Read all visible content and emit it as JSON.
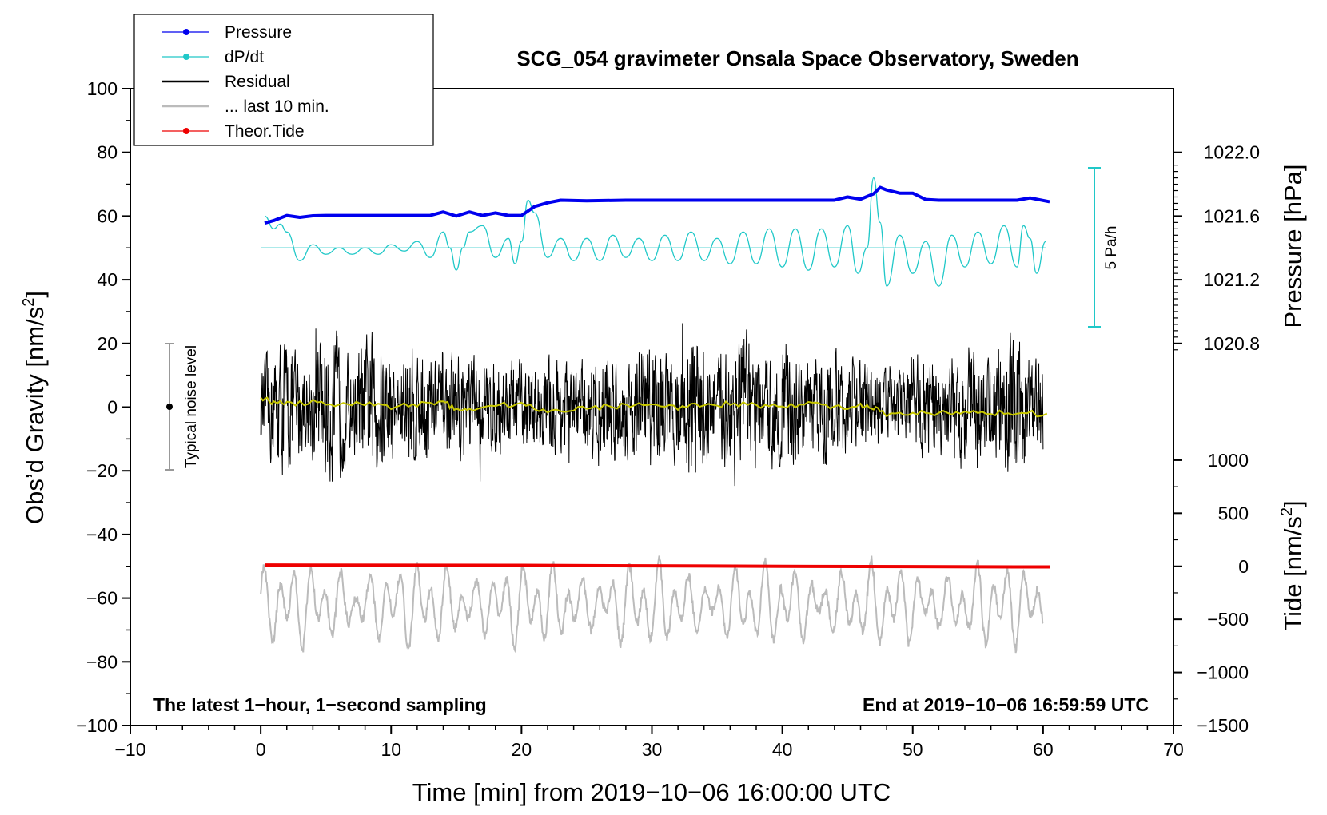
{
  "chart_data": {
    "type": "line",
    "title": "SCG_054 gravimeter Onsala Space Observatory, Sweden",
    "xlabel": "Time [min] from 2019−10−06 16:00:00 UTC",
    "ylabel_left": "Obs’d Gravity [nm/s",
    "ylabel_left_sup": "2",
    "ylabel_left_end": "]",
    "ylabel_right_pressure": "Pressure [hPa]",
    "ylabel_right_tide": "Tide [nm/s",
    "ylabel_right_tide_sup": "2",
    "ylabel_right_tide_end": "]",
    "xlim": [
      -10,
      70
    ],
    "ylim": [
      -100,
      100
    ],
    "x_ticks": [
      "−10",
      "0",
      "10",
      "20",
      "30",
      "40",
      "50",
      "60",
      "70"
    ],
    "y_ticks": [
      "−100",
      "−80",
      "−60",
      "−40",
      "−20",
      "0",
      "20",
      "40",
      "60",
      "80",
      "100"
    ],
    "pressure_ticks": [
      "1020.8",
      "1021.2",
      "1021.6",
      "1022.0"
    ],
    "tide_ticks": [
      "−1500",
      "−1000",
      "−500",
      "0",
      "500",
      "1000"
    ],
    "note_left": "The latest 1−hour, 1−second sampling",
    "note_right": "End at 2019−10−06 16:59:59 UTC",
    "noise_label": "Typical noise level",
    "noise_range": [
      -20,
      20
    ],
    "rate_label": "5 Pa/h",
    "legend": [
      {
        "label": "Pressure",
        "color": "#0000ee",
        "marker": true
      },
      {
        "label": "dP/dt",
        "color": "#20c8c8",
        "marker": true
      },
      {
        "label": "Residual",
        "color": "#000000",
        "marker": false
      },
      {
        "label": "... last 10 min.",
        "color": "#bbbbbb",
        "marker": false
      },
      {
        "label": "Theor.Tide",
        "color": "#ee0000",
        "marker": true
      }
    ],
    "series": [
      {
        "name": "Pressure",
        "color": "#0000ee",
        "axis": "left-equivalent",
        "x": [
          0.3,
          1,
          2,
          3,
          4,
          5,
          6,
          8,
          10,
          12,
          13,
          14,
          15,
          16,
          17,
          18,
          19,
          20,
          21,
          22,
          23,
          25,
          28,
          30,
          32,
          35,
          38,
          40,
          42,
          44,
          45,
          46,
          47,
          47.5,
          48,
          49,
          50,
          51,
          52,
          54,
          56,
          58,
          59,
          60.5
        ],
        "values": [
          57.8,
          58.6,
          60.2,
          59.6,
          60.1,
          60.2,
          60.2,
          60.2,
          60.2,
          60.2,
          60.2,
          61.3,
          60.0,
          61.3,
          60.2,
          61.0,
          60.2,
          60.2,
          63.0,
          64.2,
          65.0,
          64.8,
          65.0,
          65.0,
          65.0,
          65.0,
          65.0,
          65.0,
          65.0,
          65.0,
          66.0,
          65.3,
          67.0,
          69.0,
          68.2,
          67.2,
          67.2,
          65.2,
          65.0,
          65.0,
          65.0,
          65.0,
          65.7,
          64.5
        ]
      },
      {
        "name": "dP/dt",
        "color": "#20c8c8",
        "baseline": 50,
        "x": [
          0.3,
          1,
          1.5,
          2,
          3,
          4,
          5,
          6,
          7,
          8,
          9,
          10,
          11,
          12,
          13,
          14,
          14.5,
          15,
          15.5,
          16,
          17,
          18,
          19,
          19.5,
          20,
          20.5,
          21,
          22,
          23,
          24,
          25,
          26,
          27,
          28,
          29,
          30,
          31,
          32,
          33,
          34,
          35,
          36,
          37,
          38,
          39,
          40,
          41,
          42,
          43,
          44,
          45,
          45.8,
          46.5,
          47,
          47.5,
          48,
          49,
          50,
          51,
          52,
          53,
          54,
          55,
          56,
          57,
          58,
          58.5,
          59,
          59.5,
          60.2
        ],
        "values": [
          60,
          56,
          57.5,
          55,
          46,
          51,
          48,
          50,
          48,
          50,
          48,
          51,
          49,
          52,
          47,
          55,
          50,
          43,
          50,
          55,
          57,
          47,
          53,
          45,
          52,
          65,
          61,
          47,
          53,
          46,
          53,
          46,
          54,
          47,
          53,
          46,
          54,
          46,
          55,
          46,
          53,
          45,
          55,
          45,
          56,
          44,
          56,
          43,
          56,
          44,
          57,
          42,
          50,
          72,
          58,
          38,
          54,
          42,
          52,
          38,
          54,
          44,
          55,
          45,
          57,
          44,
          57,
          53,
          42,
          52
        ]
      },
      {
        "name": "Residual",
        "color": "#000000",
        "seed": 12345,
        "amplitude": 22,
        "x_range": [
          0,
          60
        ]
      },
      {
        "name": "... last 10 min.",
        "color": "#bbbbbb",
        "offset": -62,
        "amplitude": 12,
        "x_range": [
          0,
          60
        ]
      },
      {
        "name": "Theor.Tide",
        "color": "#ee0000",
        "x": [
          0.3,
          20,
          40,
          60.5
        ],
        "values": [
          -49.6,
          -49.7,
          -50.0,
          -50.2
        ]
      },
      {
        "name": "Smoothed",
        "color": "#c8c800",
        "x": [
          0,
          1,
          2,
          4,
          6,
          8,
          10,
          12,
          14,
          15,
          16,
          18,
          20,
          22,
          24,
          26,
          28,
          30,
          32,
          34,
          36,
          38,
          40,
          42,
          44,
          46,
          47,
          48,
          50,
          52,
          54,
          56,
          58,
          60.3
        ],
        "values": [
          3,
          1.5,
          1,
          1.5,
          0.5,
          1,
          0,
          1,
          2,
          -1,
          -0.5,
          0.5,
          1,
          -1.5,
          -0.5,
          0,
          0.5,
          1.5,
          0,
          0.5,
          1,
          0.5,
          0.5,
          1,
          0,
          0.5,
          -0.5,
          -2.5,
          -2,
          -2,
          -2,
          -2,
          -1.5,
          -2.5
        ]
      }
    ]
  }
}
